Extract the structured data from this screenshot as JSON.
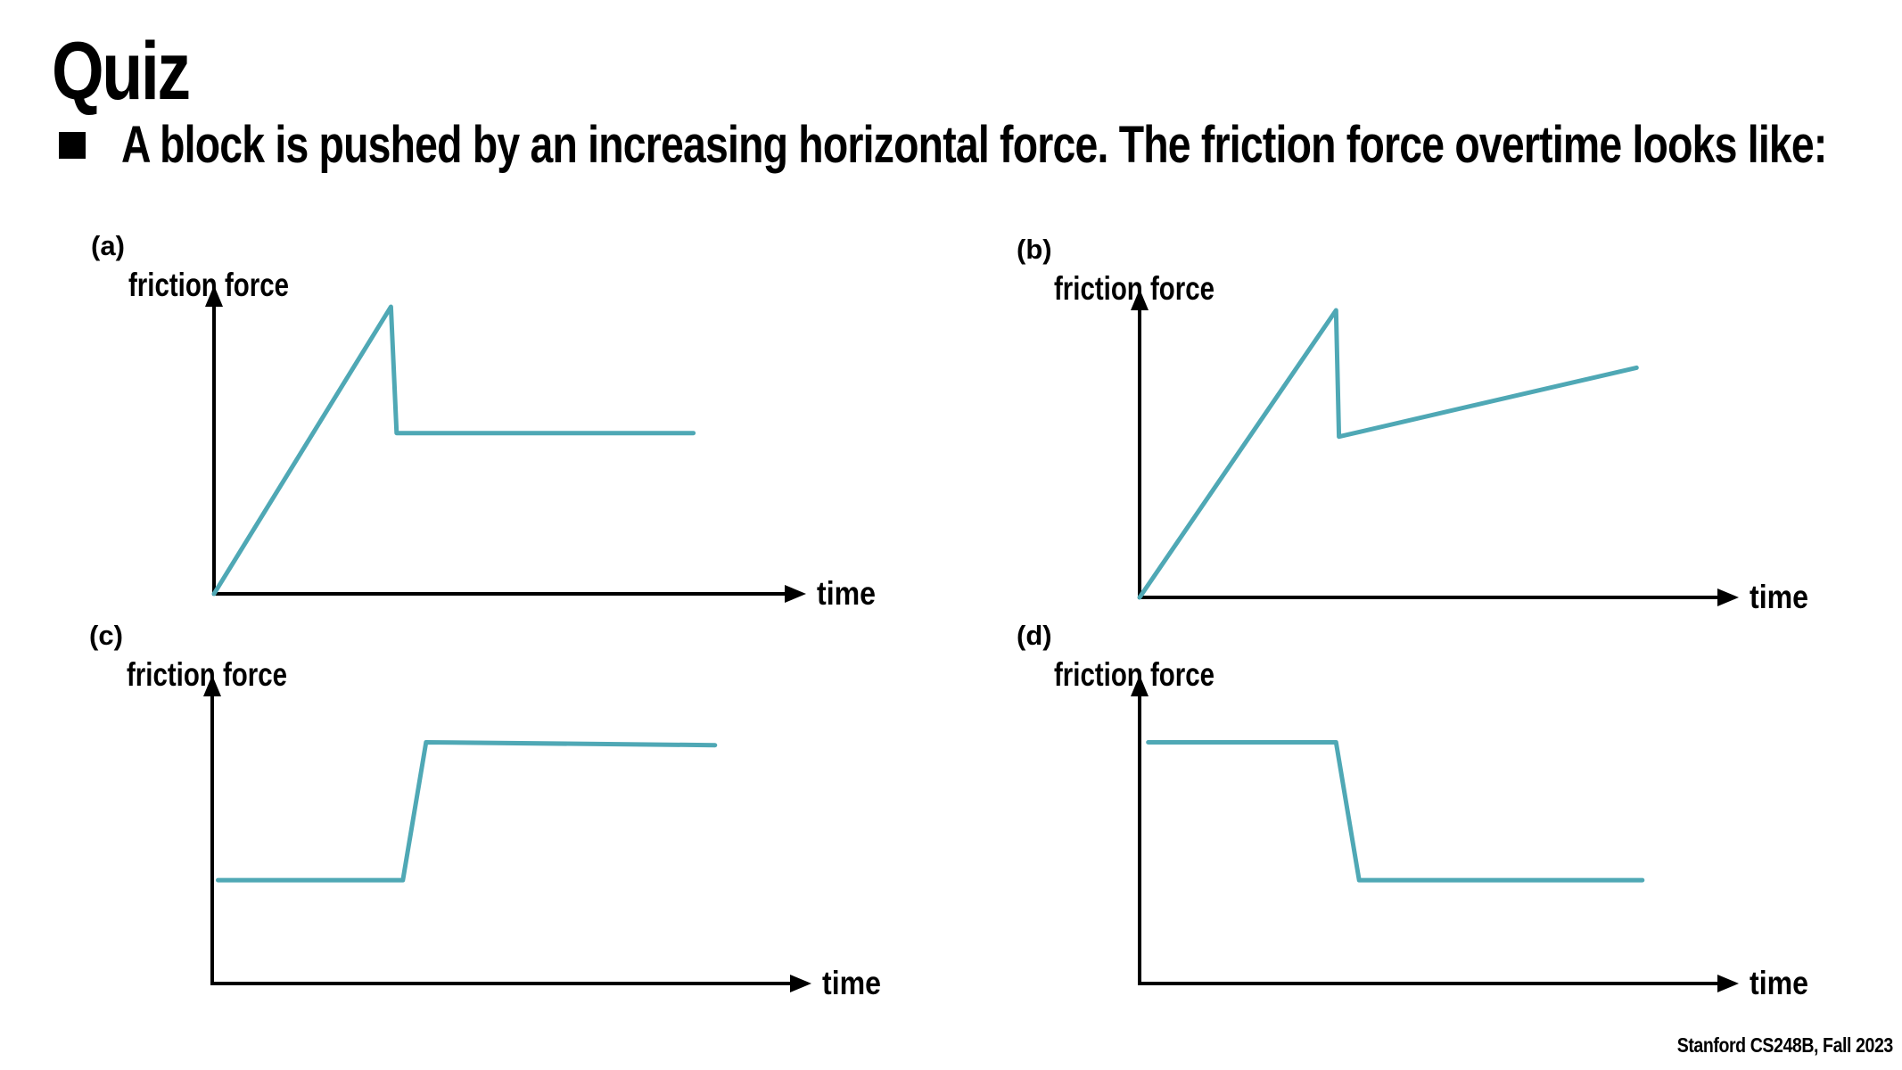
{
  "slide": {
    "title": "Quiz",
    "question": "A block is pushed by an increasing horizontal force. The friction force overtime looks like:",
    "footer": "Stanford CS248B, Fall 2023"
  },
  "colors": {
    "curve": "#4fa8b5",
    "axis": "#000000"
  },
  "chart_data": [
    {
      "type": "line",
      "panel_label": "(a)",
      "ylabel": "friction force",
      "xlabel": "time",
      "xlim": [
        0,
        1
      ],
      "ylim": [
        0,
        1
      ],
      "grid": false,
      "series": [
        {
          "x": [
            0.0,
            0.31,
            0.32,
            0.84
          ],
          "y": [
            0.0,
            1.0,
            0.56,
            0.56
          ]
        }
      ]
    },
    {
      "type": "line",
      "panel_label": "(b)",
      "ylabel": "friction force",
      "xlabel": "time",
      "xlim": [
        0,
        1
      ],
      "ylim": [
        0,
        1
      ],
      "grid": false,
      "series": [
        {
          "x": [
            0.0,
            0.34,
            0.345,
            0.86
          ],
          "y": [
            0.0,
            1.0,
            0.56,
            0.8
          ]
        }
      ]
    },
    {
      "type": "line",
      "panel_label": "(c)",
      "ylabel": "friction force",
      "xlabel": "time",
      "xlim": [
        0,
        1
      ],
      "ylim": [
        0,
        1
      ],
      "grid": false,
      "series": [
        {
          "x": [
            0.01,
            0.33,
            0.37,
            0.87
          ],
          "y": [
            0.36,
            0.36,
            0.84,
            0.83
          ]
        }
      ]
    },
    {
      "type": "line",
      "panel_label": "(d)",
      "ylabel": "friction force",
      "xlabel": "time",
      "xlim": [
        0,
        1
      ],
      "ylim": [
        0,
        1
      ],
      "grid": false,
      "series": [
        {
          "x": [
            0.015,
            0.34,
            0.38,
            0.87
          ],
          "y": [
            0.84,
            0.84,
            0.36,
            0.36
          ]
        }
      ]
    }
  ]
}
